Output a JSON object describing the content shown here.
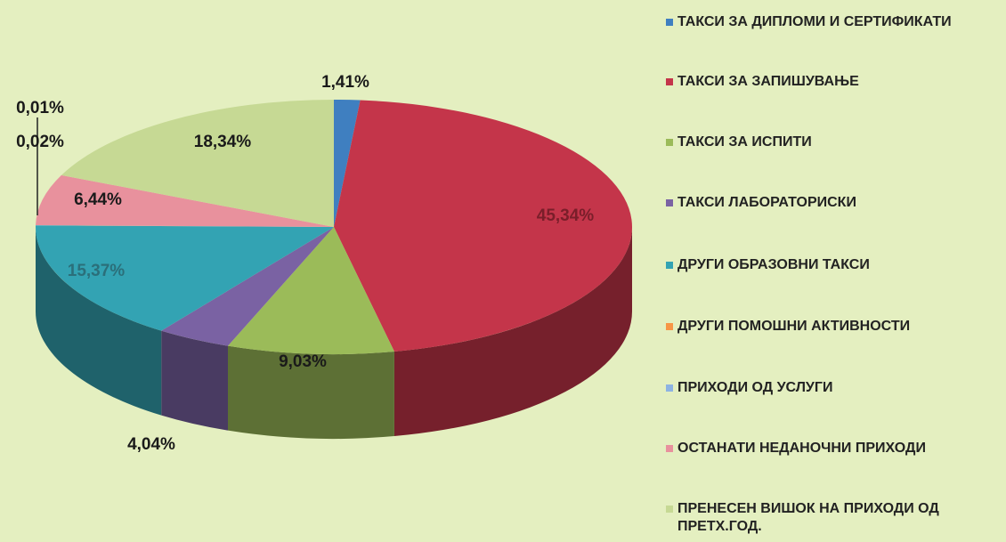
{
  "chart_data": {
    "type": "pie",
    "categories": [
      "ТАКСИ ЗА ДИПЛОМИ И СЕРТИФИКАТИ",
      "ТАКСИ ЗА ЗАПИШУВАЊЕ",
      "ТАКСИ ЗА ИСПИТИ",
      "ТАКСИ ЛАБОРАТОРИСКИ",
      "ДРУГИ ОБРАЗОВНИ ТАКСИ",
      "ДРУГИ ПОМОШНИ АКТИВНОСТИ",
      "ПРИХОДИ ОД УСЛУГИ",
      "ОСТАНАТИ НЕДАНОЧНИ ПРИХОДИ",
      "ПРЕНЕСЕН ВИШОК НА ПРИХОДИ ОД ПРЕТХ.ГОД."
    ],
    "values": [
      1.41,
      45.34,
      9.03,
      4.04,
      15.37,
      0.01,
      0.02,
      6.44,
      18.34
    ],
    "value_labels": [
      "1,41%",
      "45,34%",
      "9,03%",
      "4,04%",
      "15,37%",
      "0,01%",
      "0,02%",
      "6,44%",
      "18,34%"
    ],
    "colors": [
      "#3f7fc0",
      "#c4354a",
      "#9bbb59",
      "#7a62a3",
      "#33a3b3",
      "#f79646",
      "#8db3e2",
      "#e8919d",
      "#c6d994"
    ],
    "legend": "right"
  }
}
